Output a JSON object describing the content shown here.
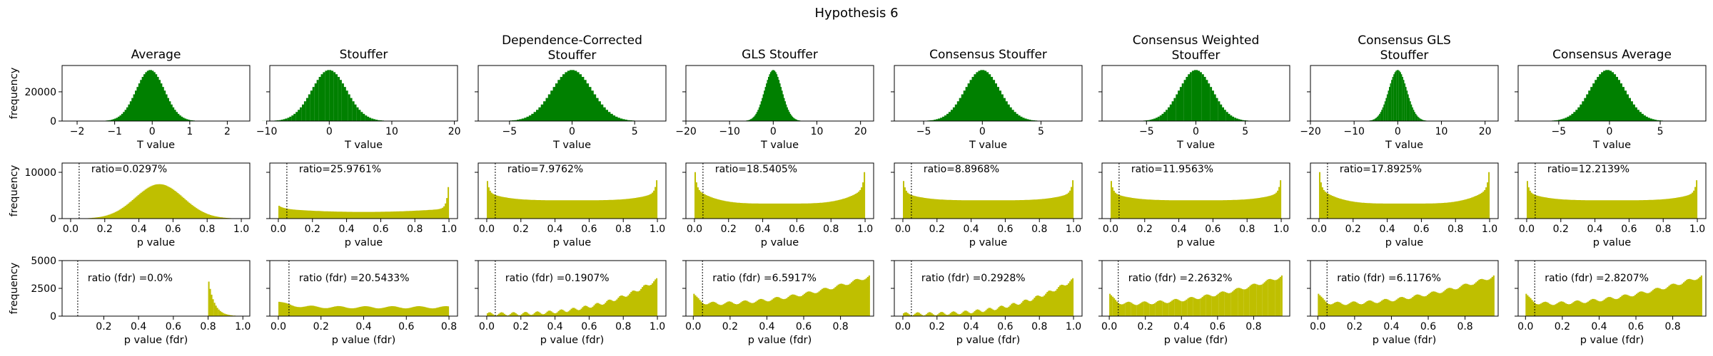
{
  "suptitle": "Hypothesis 6",
  "rows": [
    {
      "xlabel": "T value",
      "ylabel": "frequency",
      "yticks": [
        0,
        20000
      ],
      "ymax": 38000,
      "color": "#008000",
      "kind": "bell"
    },
    {
      "xlabel": "p value",
      "ylabel": "frequency",
      "yticks": [
        0,
        10000
      ],
      "ymax": 12000,
      "color": "#bfbf00",
      "kind": "p"
    },
    {
      "xlabel": "p value (fdr)",
      "ylabel": "frequency",
      "yticks": [
        0,
        2500,
        5000
      ],
      "ymax": 5000,
      "color": "#bfbf00",
      "kind": "pfdr"
    }
  ],
  "columns": [
    {
      "title": [
        "Average"
      ],
      "t": {
        "xlim": [
          -2.4,
          2.6
        ],
        "xticks": [
          -2,
          -1,
          0,
          1,
          2
        ],
        "mean": -0.05,
        "sd": 0.38
      },
      "p": {
        "ratio": "ratio=0.0297%",
        "shape": "hump",
        "xlim": [
          -0.05,
          1.05
        ],
        "xticks": [
          "0.0",
          "0.2",
          "0.4",
          "0.6",
          "0.8",
          "1.0"
        ]
      },
      "pfdr": {
        "ratio": "ratio (fdr) =0.0%",
        "shape": "avgfdr",
        "xlim": [
          -0.04,
          1.04
        ],
        "xticks": [
          "0.2",
          "0.4",
          "0.6",
          "0.8",
          "1.0"
        ],
        "xtick_vals": [
          0.2,
          0.4,
          0.6,
          0.8,
          1.0
        ]
      }
    },
    {
      "title": [
        "Stouffer"
      ],
      "t": {
        "xlim": [
          -9.5,
          20.5
        ],
        "xticks": [
          -10,
          0,
          10,
          20
        ],
        "mean": 0,
        "sd": 2.8
      },
      "p": {
        "ratio": "ratio=25.9761%",
        "shape": "u_strong",
        "xlim": [
          -0.05,
          1.05
        ],
        "xticks": [
          "0.0",
          "0.2",
          "0.4",
          "0.6",
          "0.8",
          "1.0"
        ]
      },
      "pfdr": {
        "ratio": "ratio (fdr) =20.5433%",
        "shape": "flat_left",
        "xlim": [
          -0.04,
          0.84
        ],
        "xticks": [
          "0.0",
          "0.2",
          "0.4",
          "0.6",
          "0.8"
        ],
        "xtick_vals": [
          0,
          0.2,
          0.4,
          0.6,
          0.8
        ]
      }
    },
    {
      "title": [
        "Dependence-Corrected",
        "Stouffer"
      ],
      "t": {
        "xlim": [
          -7.5,
          7.5
        ],
        "xticks": [
          -5,
          0,
          5
        ],
        "mean": 0,
        "sd": 1.6
      },
      "p": {
        "ratio": "ratio=7.9762%",
        "shape": "u_mild",
        "xlim": [
          -0.05,
          1.05
        ],
        "xticks": [
          "0.0",
          "0.2",
          "0.4",
          "0.6",
          "0.8",
          "1.0"
        ]
      },
      "pfdr": {
        "ratio": "ratio (fdr) =0.1907%",
        "shape": "rising",
        "xlim": [
          -0.05,
          1.05
        ],
        "xticks": [
          "0.0",
          "0.2",
          "0.4",
          "0.6",
          "0.8",
          "1.0"
        ],
        "xtick_vals": [
          0,
          0.2,
          0.4,
          0.6,
          0.8,
          1.0
        ]
      }
    },
    {
      "title": [
        "GLS Stouffer"
      ],
      "t": {
        "xlim": [
          -20,
          23
        ],
        "xticks": [
          -20,
          -10,
          0,
          10,
          20
        ],
        "mean": 0,
        "sd": 2.0
      },
      "p": {
        "ratio": "ratio=18.5405%",
        "shape": "u_mid",
        "xlim": [
          -0.05,
          1.05
        ],
        "xticks": [
          "0.0",
          "0.2",
          "0.4",
          "0.6",
          "0.8",
          "1.0"
        ]
      },
      "pfdr": {
        "ratio": "ratio (fdr) =6.5917%",
        "shape": "u_rising",
        "xlim": [
          -0.04,
          0.98
        ],
        "xticks": [
          "0.0",
          "0.2",
          "0.4",
          "0.6",
          "0.8"
        ],
        "xtick_vals": [
          0,
          0.2,
          0.4,
          0.6,
          0.8
        ]
      }
    },
    {
      "title": [
        "Consensus Stouffer"
      ],
      "t": {
        "xlim": [
          -7.5,
          8.5
        ],
        "xticks": [
          -5,
          0,
          5
        ],
        "mean": 0,
        "sd": 1.5
      },
      "p": {
        "ratio": "ratio=8.8968%",
        "shape": "u_mild",
        "xlim": [
          -0.05,
          1.05
        ],
        "xticks": [
          "0.0",
          "0.2",
          "0.4",
          "0.6",
          "0.8",
          "1.0"
        ]
      },
      "pfdr": {
        "ratio": "ratio (fdr) =0.2928%",
        "shape": "rising",
        "xlim": [
          -0.05,
          1.05
        ],
        "xticks": [
          "0.0",
          "0.2",
          "0.4",
          "0.6",
          "0.8",
          "1.0"
        ],
        "xtick_vals": [
          0,
          0.2,
          0.4,
          0.6,
          0.8,
          1.0
        ]
      }
    },
    {
      "title": [
        "Consensus Weighted",
        "Stouffer"
      ],
      "t": {
        "xlim": [
          -9.5,
          9.5
        ],
        "xticks": [
          -5,
          0,
          5
        ],
        "mean": 0,
        "sd": 1.7
      },
      "p": {
        "ratio": "ratio=11.9563%",
        "shape": "u_mild",
        "xlim": [
          -0.05,
          1.05
        ],
        "xticks": [
          "0.0",
          "0.2",
          "0.4",
          "0.6",
          "0.8",
          "1.0"
        ]
      },
      "pfdr": {
        "ratio": "ratio (fdr) =2.2632%",
        "shape": "u_rising",
        "xlim": [
          -0.04,
          1.0
        ],
        "xticks": [
          "0.0",
          "0.2",
          "0.4",
          "0.6",
          "0.8"
        ],
        "xtick_vals": [
          0,
          0.2,
          0.4,
          0.6,
          0.8
        ]
      }
    },
    {
      "title": [
        "Consensus GLS",
        "Stouffer"
      ],
      "t": {
        "xlim": [
          -20,
          23
        ],
        "xticks": [
          -20,
          -10,
          0,
          10,
          20
        ],
        "mean": 0,
        "sd": 2.1
      },
      "p": {
        "ratio": "ratio=17.8925%",
        "shape": "u_mid",
        "xlim": [
          -0.05,
          1.05
        ],
        "xticks": [
          "0.0",
          "0.2",
          "0.4",
          "0.6",
          "0.8",
          "1.0"
        ]
      },
      "pfdr": {
        "ratio": "ratio (fdr) =6.1176%",
        "shape": "u_rising",
        "xlim": [
          -0.04,
          0.98
        ],
        "xticks": [
          "0.0",
          "0.2",
          "0.4",
          "0.6",
          "0.8"
        ],
        "xtick_vals": [
          0,
          0.2,
          0.4,
          0.6,
          0.8
        ]
      }
    },
    {
      "title": [
        "Consensus Average"
      ],
      "t": {
        "xlim": [
          -9,
          9.5
        ],
        "xticks": [
          -5,
          0,
          5
        ],
        "mean": -0.2,
        "sd": 1.75
      },
      "p": {
        "ratio": "ratio=12.2139%",
        "shape": "u_mild",
        "xlim": [
          -0.05,
          1.05
        ],
        "xticks": [
          "0.0",
          "0.2",
          "0.4",
          "0.6",
          "0.8",
          "1.0"
        ]
      },
      "pfdr": {
        "ratio": "ratio (fdr) =2.8207%",
        "shape": "u_rising",
        "xlim": [
          -0.04,
          0.98
        ],
        "xticks": [
          "0.0",
          "0.2",
          "0.4",
          "0.6",
          "0.8"
        ],
        "xtick_vals": [
          0,
          0.2,
          0.4,
          0.6,
          0.8
        ]
      }
    }
  ],
  "chart_data": {
    "type": "histogram",
    "title": "Hypothesis 6",
    "threshold_line": 0.05,
    "panels": "3 rows (T value, p value, p value (fdr)) x 8 methods",
    "methods": [
      "Average",
      "Stouffer",
      "Dependence-Corrected Stouffer",
      "GLS Stouffer",
      "Consensus Stouffer",
      "Consensus Weighted Stouffer",
      "Consensus GLS Stouffer",
      "Consensus Average"
    ],
    "p_ratios": [
      "0.0297%",
      "25.9761%",
      "7.9762%",
      "18.5405%",
      "8.8968%",
      "11.9563%",
      "17.8925%",
      "12.2139%"
    ],
    "p_fdr_ratios": [
      "0.0%",
      "20.5433%",
      "0.1907%",
      "6.5917%",
      "0.2928%",
      "2.2632%",
      "6.1176%",
      "2.8207%"
    ]
  }
}
